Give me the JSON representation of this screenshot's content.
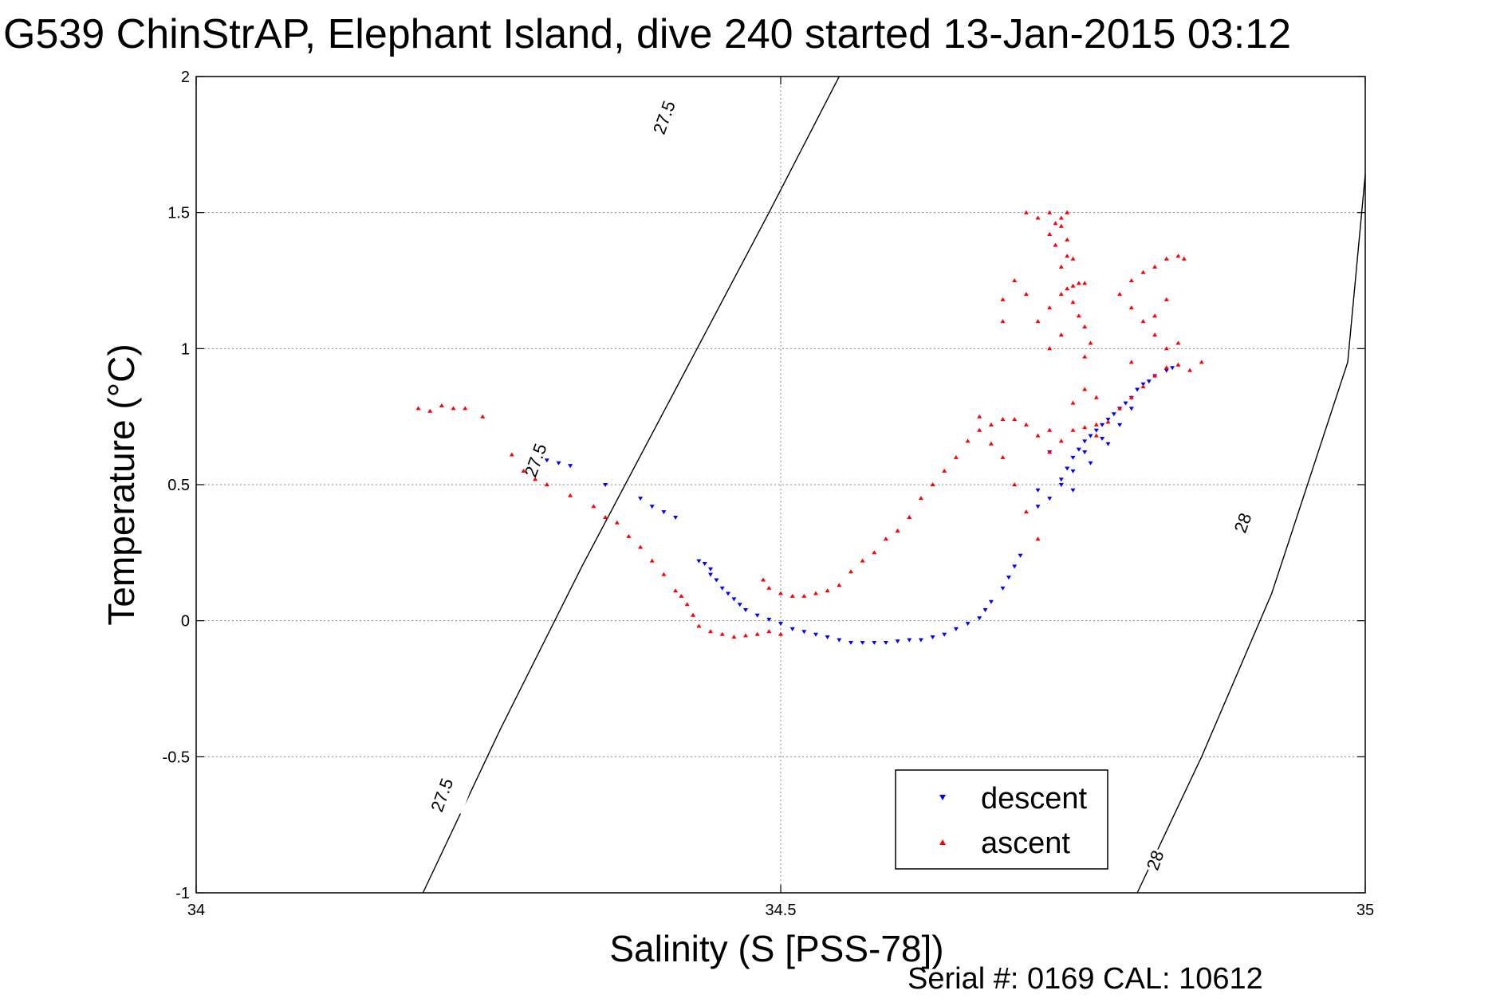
{
  "chart_data": {
    "type": "scatter",
    "title": "G539 ChinStrAP, Elephant Island, dive 240 started 13-Jan-2015 03:12",
    "xlabel": "Salinity (S [PSS-78])",
    "ylabel": "Temperature (°C)",
    "xlim": [
      34,
      35
    ],
    "ylim": [
      -1,
      2
    ],
    "xticks": [
      "34",
      "34.5",
      "35"
    ],
    "yticks": [
      "-1",
      "-0.5",
      "0",
      "0.5",
      "1",
      "1.5",
      "2"
    ],
    "grid": true,
    "footer": "Serial #: 0169 CAL: 10612",
    "legend_position": "bottom-right",
    "contours": [
      {
        "label": "27.5",
        "points": [
          [
            34.194,
            -1.0
          ],
          [
            34.26,
            -0.4
          ],
          [
            34.33,
            0.2
          ],
          [
            34.41,
            0.85
          ],
          [
            34.49,
            1.5
          ],
          [
            34.55,
            2.0
          ]
        ]
      },
      {
        "label": "28",
        "points": [
          [
            34.805,
            -1.0
          ],
          [
            34.86,
            -0.5
          ],
          [
            34.92,
            0.1
          ],
          [
            34.985,
            0.95
          ],
          [
            35.0,
            1.64
          ]
        ]
      }
    ],
    "contour_labels": [
      {
        "text": "27.5",
        "x": 34.4,
        "y": 1.85
      },
      {
        "text": "27.5",
        "x": 34.29,
        "y": 0.59
      },
      {
        "text": "27.5",
        "x": 34.21,
        "y": -0.64
      },
      {
        "text": "28",
        "x": 34.895,
        "y": 0.36
      },
      {
        "text": "28",
        "x": 34.82,
        "y": -0.88
      }
    ],
    "series": [
      {
        "name": "descent",
        "color": "#0000ff",
        "marker": "triangle-down",
        "points": [
          [
            34.3,
            0.59
          ],
          [
            34.31,
            0.58
          ],
          [
            34.32,
            0.57
          ],
          [
            34.35,
            0.5
          ],
          [
            34.38,
            0.45
          ],
          [
            34.39,
            0.42
          ],
          [
            34.4,
            0.4
          ],
          [
            34.41,
            0.38
          ],
          [
            34.43,
            0.22
          ],
          [
            34.435,
            0.21
          ],
          [
            34.44,
            0.19
          ],
          [
            34.44,
            0.17
          ],
          [
            34.445,
            0.15
          ],
          [
            34.45,
            0.12
          ],
          [
            34.455,
            0.1
          ],
          [
            34.46,
            0.08
          ],
          [
            34.465,
            0.06
          ],
          [
            34.47,
            0.04
          ],
          [
            34.48,
            0.02
          ],
          [
            34.49,
            0.005
          ],
          [
            34.5,
            -0.01
          ],
          [
            34.51,
            -0.03
          ],
          [
            34.52,
            -0.04
          ],
          [
            34.53,
            -0.05
          ],
          [
            34.54,
            -0.06
          ],
          [
            34.55,
            -0.07
          ],
          [
            34.56,
            -0.08
          ],
          [
            34.57,
            -0.08
          ],
          [
            34.58,
            -0.08
          ],
          [
            34.59,
            -0.08
          ],
          [
            34.6,
            -0.075
          ],
          [
            34.61,
            -0.07
          ],
          [
            34.62,
            -0.07
          ],
          [
            34.63,
            -0.06
          ],
          [
            34.64,
            -0.05
          ],
          [
            34.65,
            -0.03
          ],
          [
            34.66,
            -0.01
          ],
          [
            34.67,
            0.01
          ],
          [
            34.675,
            0.04
          ],
          [
            34.68,
            0.07
          ],
          [
            34.69,
            0.12
          ],
          [
            34.695,
            0.16
          ],
          [
            34.7,
            0.2
          ],
          [
            34.705,
            0.24
          ],
          [
            34.72,
            0.42
          ],
          [
            34.74,
            0.52
          ],
          [
            34.745,
            0.56
          ],
          [
            34.75,
            0.6
          ],
          [
            34.755,
            0.63
          ],
          [
            34.76,
            0.66
          ],
          [
            34.765,
            0.68
          ],
          [
            34.77,
            0.7
          ],
          [
            34.775,
            0.72
          ],
          [
            34.78,
            0.74
          ],
          [
            34.785,
            0.76
          ],
          [
            34.79,
            0.78
          ],
          [
            34.795,
            0.8
          ],
          [
            34.8,
            0.82
          ],
          [
            34.805,
            0.85
          ],
          [
            34.81,
            0.87
          ],
          [
            34.815,
            0.88
          ],
          [
            34.82,
            0.9
          ],
          [
            34.83,
            0.92
          ],
          [
            34.835,
            0.93
          ],
          [
            34.74,
            0.5
          ],
          [
            34.75,
            0.55
          ],
          [
            34.76,
            0.62
          ],
          [
            34.73,
            0.62
          ],
          [
            34.72,
            0.48
          ],
          [
            34.73,
            0.45
          ],
          [
            34.75,
            0.48
          ],
          [
            34.78,
            0.65
          ],
          [
            34.765,
            0.58
          ],
          [
            34.775,
            0.67
          ],
          [
            34.79,
            0.72
          ],
          [
            34.8,
            0.78
          ]
        ]
      },
      {
        "name": "ascent",
        "color": "#ff0000",
        "marker": "triangle-up",
        "points": [
          [
            34.19,
            0.78
          ],
          [
            34.2,
            0.77
          ],
          [
            34.21,
            0.79
          ],
          [
            34.22,
            0.78
          ],
          [
            34.23,
            0.78
          ],
          [
            34.245,
            0.75
          ],
          [
            34.27,
            0.61
          ],
          [
            34.28,
            0.55
          ],
          [
            34.29,
            0.52
          ],
          [
            34.3,
            0.5
          ],
          [
            34.32,
            0.46
          ],
          [
            34.34,
            0.42
          ],
          [
            34.35,
            0.38
          ],
          [
            34.36,
            0.36
          ],
          [
            34.37,
            0.31
          ],
          [
            34.38,
            0.27
          ],
          [
            34.39,
            0.22
          ],
          [
            34.4,
            0.17
          ],
          [
            34.41,
            0.11
          ],
          [
            34.415,
            0.09
          ],
          [
            34.42,
            0.06
          ],
          [
            34.425,
            0.02
          ],
          [
            34.43,
            -0.02
          ],
          [
            34.44,
            -0.04
          ],
          [
            34.45,
            -0.05
          ],
          [
            34.46,
            -0.06
          ],
          [
            34.47,
            -0.055
          ],
          [
            34.48,
            -0.05
          ],
          [
            34.49,
            -0.04
          ],
          [
            34.5,
            -0.05
          ],
          [
            34.485,
            0.15
          ],
          [
            34.49,
            0.12
          ],
          [
            34.5,
            0.1
          ],
          [
            34.51,
            0.09
          ],
          [
            34.52,
            0.09
          ],
          [
            34.53,
            0.1
          ],
          [
            34.54,
            0.11
          ],
          [
            34.55,
            0.13
          ],
          [
            34.56,
            0.18
          ],
          [
            34.57,
            0.22
          ],
          [
            34.58,
            0.25
          ],
          [
            34.59,
            0.3
          ],
          [
            34.6,
            0.33
          ],
          [
            34.61,
            0.38
          ],
          [
            34.62,
            0.45
          ],
          [
            34.63,
            0.5
          ],
          [
            34.64,
            0.55
          ],
          [
            34.65,
            0.6
          ],
          [
            34.66,
            0.66
          ],
          [
            34.67,
            0.7
          ],
          [
            34.68,
            0.72
          ],
          [
            34.69,
            0.74
          ],
          [
            34.7,
            0.74
          ],
          [
            34.71,
            0.72
          ],
          [
            34.72,
            0.68
          ],
          [
            34.73,
            0.62
          ],
          [
            34.74,
            0.66
          ],
          [
            34.75,
            0.7
          ],
          [
            34.76,
            0.71
          ],
          [
            34.77,
            0.72
          ],
          [
            34.78,
            0.73
          ],
          [
            34.79,
            0.78
          ],
          [
            34.8,
            0.82
          ],
          [
            34.81,
            0.86
          ],
          [
            34.82,
            0.9
          ],
          [
            34.83,
            0.93
          ],
          [
            34.84,
            0.94
          ],
          [
            34.85,
            0.92
          ],
          [
            34.86,
            0.95
          ],
          [
            34.72,
            0.3
          ],
          [
            34.71,
            0.4
          ],
          [
            34.7,
            0.5
          ],
          [
            34.69,
            0.6
          ],
          [
            34.68,
            0.65
          ],
          [
            34.67,
            0.75
          ],
          [
            34.72,
            1.1
          ],
          [
            34.73,
            1.15
          ],
          [
            34.74,
            1.2
          ],
          [
            34.745,
            1.22
          ],
          [
            34.75,
            1.23
          ],
          [
            34.755,
            1.24
          ],
          [
            34.76,
            1.24
          ],
          [
            34.74,
            1.3
          ],
          [
            34.745,
            1.34
          ],
          [
            34.75,
            1.33
          ],
          [
            34.735,
            1.38
          ],
          [
            34.73,
            1.42
          ],
          [
            34.735,
            1.46
          ],
          [
            34.74,
            1.48
          ],
          [
            34.745,
            1.5
          ],
          [
            34.74,
            1.45
          ],
          [
            34.745,
            1.4
          ],
          [
            34.72,
            1.48
          ],
          [
            34.71,
            1.5
          ],
          [
            34.73,
            1.5
          ],
          [
            34.75,
            1.17
          ],
          [
            34.755,
            1.12
          ],
          [
            34.76,
            1.08
          ],
          [
            34.765,
            1.02
          ],
          [
            34.76,
            0.97
          ],
          [
            34.74,
            1.05
          ],
          [
            34.73,
            1.0
          ],
          [
            34.7,
            1.25
          ],
          [
            34.69,
            1.18
          ],
          [
            34.69,
            1.1
          ],
          [
            34.71,
            1.2
          ],
          [
            34.79,
            1.2
          ],
          [
            34.8,
            1.25
          ],
          [
            34.81,
            1.28
          ],
          [
            34.82,
            1.3
          ],
          [
            34.83,
            1.33
          ],
          [
            34.84,
            1.34
          ],
          [
            34.845,
            1.33
          ],
          [
            34.8,
            1.15
          ],
          [
            34.81,
            1.1
          ],
          [
            34.82,
            1.05
          ],
          [
            34.83,
            1.0
          ],
          [
            34.84,
            1.02
          ],
          [
            34.82,
            1.12
          ],
          [
            34.83,
            1.18
          ],
          [
            34.8,
            0.95
          ],
          [
            34.76,
            0.85
          ],
          [
            34.75,
            0.8
          ],
          [
            34.77,
            0.82
          ],
          [
            34.73,
            0.7
          ],
          [
            34.77,
            0.68
          ]
        ]
      }
    ]
  }
}
